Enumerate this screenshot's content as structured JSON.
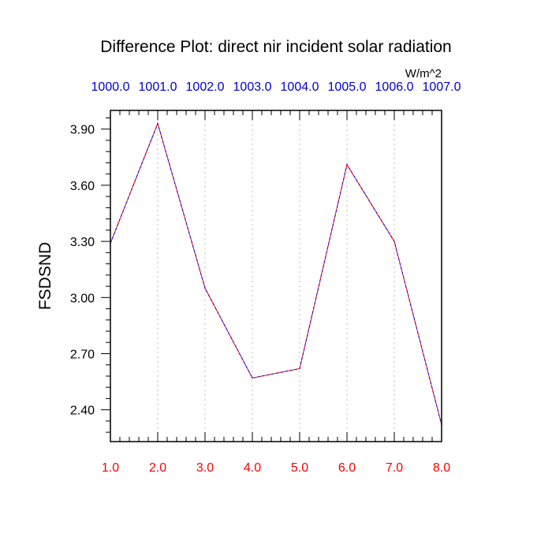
{
  "chart_data": {
    "type": "line",
    "title": "Difference Plot: direct nir incident solar radiation",
    "units": "W/m^2",
    "ylabel": "FSDSND",
    "xlabel": "",
    "x": [
      1.0,
      2.0,
      3.0,
      4.0,
      5.0,
      6.0,
      7.0,
      8.0
    ],
    "xlim": [
      1.0,
      8.0
    ],
    "ylim": [
      2.23,
      4.0
    ],
    "x_tick_labels_bottom": [
      "1.0",
      "2.0",
      "3.0",
      "4.0",
      "5.0",
      "6.0",
      "7.0",
      "8.0"
    ],
    "x_tick_labels_top": [
      "1000.0",
      "1001.0",
      "1002.0",
      "1003.0",
      "1004.0",
      "1005.0",
      "1006.0",
      "1007.0"
    ],
    "y_ticks": [
      2.4,
      2.7,
      3.0,
      3.3,
      3.6,
      3.9
    ],
    "y_tick_labels": [
      "2.40",
      "2.70",
      "3.00",
      "3.30",
      "3.60",
      "3.90"
    ],
    "grid": "vertical dotted",
    "series": [
      {
        "values": [
          3.29,
          3.93,
          3.05,
          2.57,
          2.62,
          3.71,
          3.3,
          2.32
        ],
        "color": "#7a00c8",
        "style": "dashed"
      }
    ],
    "colors": {
      "bottom_tick_labels": "#ff0000",
      "top_tick_labels": "#0000cc",
      "text": "#000000",
      "grid": "#bbbbbb"
    }
  }
}
